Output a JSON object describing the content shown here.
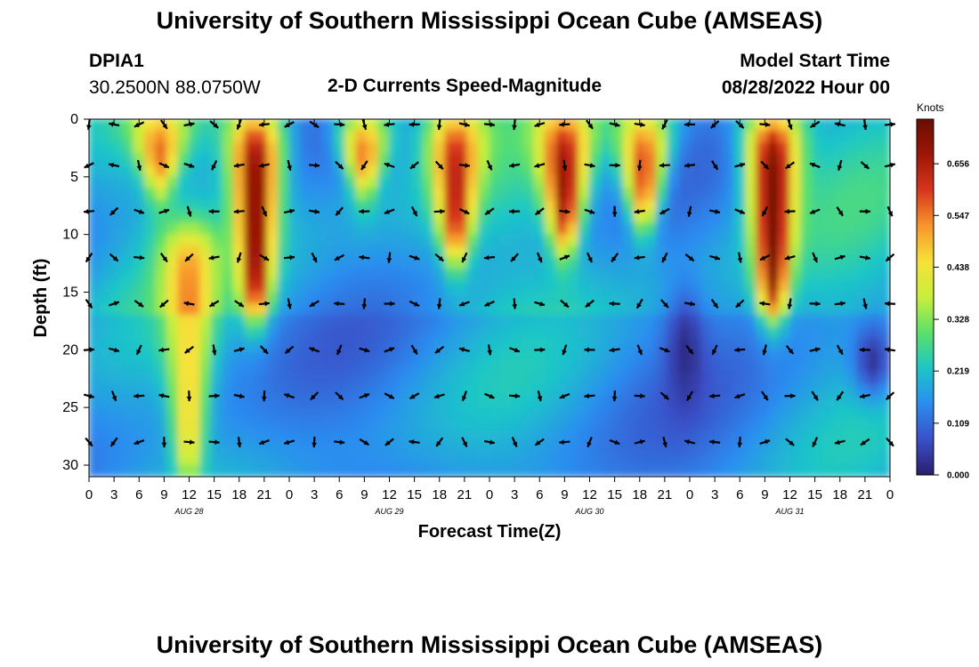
{
  "header": {
    "title": "University of Southern Mississippi Ocean Cube (AMSEAS)",
    "station_id": "DPIA1",
    "coordinates": "30.2500N  88.0750W",
    "subtitle": "2-D Currents Speed-Magnitude",
    "model_start_label": "Model Start Time",
    "model_start_value": "08/28/2022 Hour 00"
  },
  "footer": {
    "title": "University of Southern Mississippi Ocean Cube (AMSEAS)"
  },
  "colorbar": {
    "unit_label": "Knots",
    "ticks": [
      "0.656",
      "0.547",
      "0.438",
      "0.328",
      "0.219",
      "0.109",
      "0.000"
    ],
    "tick_values": [
      0.656,
      0.547,
      0.438,
      0.328,
      0.219,
      0.109,
      0.0
    ],
    "range": [
      0.0,
      0.75
    ],
    "colors": [
      "#2a1e6e",
      "#3a50c8",
      "#2b8cf0",
      "#1cc6c8",
      "#5be06a",
      "#c9ef3a",
      "#f7e13a",
      "#f8962b",
      "#d7361c",
      "#9e1606",
      "#6a0d04"
    ]
  },
  "chart_data": {
    "type": "heatmap",
    "title": "2-D Currents Speed-Magnitude",
    "xlabel": "Forecast Time(Z)",
    "ylabel": "Depth (ft)",
    "x_ticks": [
      "0",
      "3",
      "6",
      "9",
      "12",
      "15",
      "18",
      "21",
      "0",
      "3",
      "6",
      "9",
      "12",
      "15",
      "18",
      "21",
      "0",
      "3",
      "6",
      "9",
      "12",
      "15",
      "18",
      "21",
      "0",
      "3",
      "6",
      "9",
      "12",
      "15",
      "18",
      "21",
      "0"
    ],
    "day_labels": [
      "AUG 28",
      "AUG 29",
      "AUG 30",
      "AUG 31"
    ],
    "y_ticks": [
      "0",
      "5",
      "10",
      "15",
      "20",
      "25",
      "30"
    ],
    "y_tick_values": [
      0,
      5,
      10,
      15,
      20,
      25,
      30
    ],
    "ylim": [
      0,
      31
    ],
    "xlim_hours": [
      0,
      96
    ],
    "arrow_depths_ft": [
      0,
      4,
      8,
      12,
      16,
      20,
      24,
      28
    ],
    "arrow_hours": [
      0,
      3,
      6,
      9,
      12,
      15,
      18,
      21,
      24,
      27,
      30,
      33,
      36,
      39,
      42,
      45,
      48,
      51,
      54,
      57,
      60,
      63,
      66,
      69,
      72,
      75,
      78,
      81,
      84,
      87,
      90,
      93,
      96
    ],
    "speed_features_knots": [
      {
        "center_hour": 8.5,
        "depth_range_ft": [
          0,
          6
        ],
        "speed": 0.62
      },
      {
        "center_hour": 12,
        "depth_range_ft": [
          10,
          31
        ],
        "speed": 0.55
      },
      {
        "center_hour": 20,
        "depth_range_ft": [
          0,
          17
        ],
        "speed": 0.72
      },
      {
        "center_hour": 33,
        "depth_range_ft": [
          0,
          6
        ],
        "speed": 0.62
      },
      {
        "center_hour": 44,
        "depth_range_ft": [
          0,
          12
        ],
        "speed": 0.66
      },
      {
        "center_hour": 57,
        "depth_range_ft": [
          0,
          11
        ],
        "speed": 0.7
      },
      {
        "center_hour": 66.5,
        "depth_range_ft": [
          0,
          9
        ],
        "speed": 0.62
      },
      {
        "center_hour": 82,
        "depth_range_ft": [
          0,
          17
        ],
        "speed": 0.74
      },
      {
        "center_hour": 71.5,
        "depth_range_ft": [
          16,
          24
        ],
        "speed": 0.02
      },
      {
        "center_hour": 94,
        "depth_range_ft": [
          19,
          23
        ],
        "speed": 0.02
      }
    ]
  }
}
